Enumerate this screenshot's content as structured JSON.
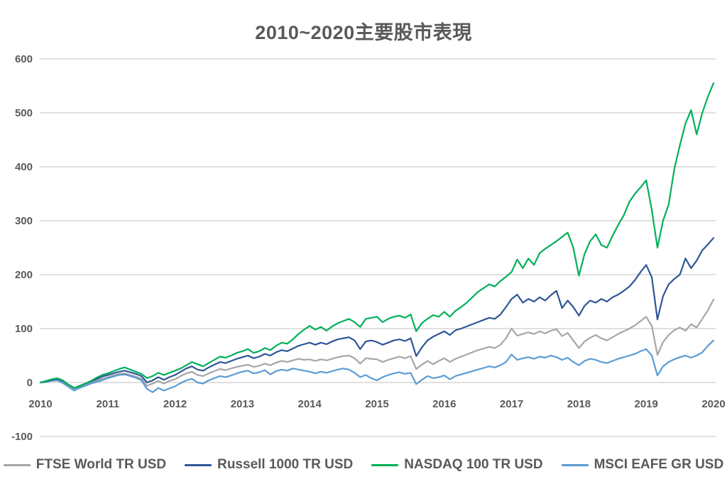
{
  "title": "2010~2020主要股市表現",
  "colors": {
    "title_text": "#595959",
    "axis_text": "#595959",
    "gridline": "#d6d6d6",
    "background": "#ffffff",
    "ftse_world": "#a6a6a6",
    "russell_1000": "#2e5696",
    "nasdaq_100": "#00b05a",
    "msci_eafe": "#5b9bd5"
  },
  "chart_data": {
    "type": "line",
    "title": "2010~2020主要股市表現",
    "xlabel": "",
    "ylabel": "",
    "grid": true,
    "legend_position": "bottom",
    "x_axis": {
      "tick_labels": [
        "2010",
        "2011",
        "2012",
        "2013",
        "2014",
        "2015",
        "2016",
        "2017",
        "2018",
        "2019",
        "2020"
      ],
      "start_year": 2010,
      "end_year": 2020,
      "points_per_series": 121,
      "interval_months": 1
    },
    "y_axis": {
      "min": -100,
      "max": 600,
      "tick_step": 100,
      "tick_labels": [
        "600",
        "500",
        "400",
        "300",
        "200",
        "100",
        "0",
        "-100"
      ]
    },
    "series": [
      {
        "name": "FTSE World TR USD",
        "color": "#a6a6a6",
        "values": [
          0,
          2,
          4,
          5,
          1,
          -6,
          -12,
          -8,
          -4,
          0,
          3,
          7,
          10,
          13,
          16,
          17,
          14,
          11,
          7,
          -6,
          -2,
          3,
          -2,
          3,
          6,
          12,
          17,
          20,
          14,
          12,
          17,
          21,
          25,
          23,
          26,
          29,
          31,
          33,
          29,
          31,
          35,
          32,
          37,
          40,
          38,
          41,
          44,
          42,
          43,
          40,
          43,
          41,
          44,
          47,
          49,
          50,
          45,
          35,
          45,
          44,
          43,
          38,
          42,
          45,
          48,
          45,
          49,
          25,
          33,
          40,
          34,
          40,
          45,
          38,
          44,
          48,
          52,
          56,
          60,
          63,
          66,
          64,
          70,
          82,
          100,
          87,
          90,
          93,
          90,
          95,
          91,
          96,
          99,
          86,
          92,
          78,
          64,
          76,
          83,
          88,
          82,
          78,
          84,
          90,
          95,
          100,
          106,
          114,
          122,
          105,
          51,
          75,
          88,
          97,
          102,
          96,
          108,
          102,
          118,
          134,
          154
        ]
      },
      {
        "name": "Russell 1000 TR USD",
        "color": "#2e5696",
        "values": [
          0,
          2,
          5,
          7,
          3,
          -4,
          -10,
          -6,
          -2,
          2,
          6,
          11,
          14,
          17,
          20,
          22,
          19,
          16,
          12,
          0,
          4,
          10,
          5,
          10,
          14,
          20,
          26,
          30,
          24,
          22,
          28,
          33,
          38,
          36,
          40,
          44,
          47,
          50,
          45,
          48,
          53,
          50,
          56,
          60,
          58,
          63,
          68,
          71,
          74,
          70,
          74,
          71,
          76,
          80,
          82,
          84,
          78,
          62,
          76,
          78,
          75,
          70,
          74,
          78,
          80,
          77,
          82,
          49,
          65,
          78,
          85,
          90,
          95,
          88,
          97,
          100,
          104,
          108,
          112,
          116,
          120,
          118,
          126,
          140,
          155,
          163,
          148,
          155,
          150,
          158,
          152,
          162,
          170,
          138,
          152,
          140,
          124,
          142,
          152,
          148,
          155,
          150,
          158,
          163,
          170,
          178,
          190,
          205,
          218,
          195,
          117,
          160,
          182,
          192,
          200,
          230,
          212,
          226,
          245,
          256,
          268
        ]
      },
      {
        "name": "NASDAQ 100 TR USD",
        "color": "#00b05a",
        "values": [
          0,
          3,
          6,
          8,
          4,
          -4,
          -10,
          -7,
          -2,
          3,
          9,
          14,
          17,
          21,
          25,
          28,
          24,
          20,
          16,
          8,
          12,
          18,
          14,
          18,
          22,
          26,
          32,
          38,
          34,
          30,
          36,
          42,
          48,
          46,
          50,
          55,
          58,
          62,
          55,
          58,
          64,
          60,
          68,
          74,
          72,
          80,
          90,
          98,
          105,
          98,
          103,
          96,
          104,
          110,
          114,
          118,
          112,
          103,
          118,
          120,
          122,
          112,
          118,
          122,
          124,
          120,
          126,
          95,
          110,
          118,
          125,
          122,
          131,
          122,
          133,
          140,
          148,
          158,
          168,
          175,
          182,
          178,
          188,
          196,
          205,
          228,
          212,
          230,
          218,
          240,
          248,
          255,
          262,
          270,
          278,
          250,
          198,
          238,
          262,
          275,
          255,
          250,
          272,
          292,
          310,
          335,
          350,
          362,
          375,
          320,
          250,
          300,
          330,
          395,
          440,
          480,
          505,
          460,
          500,
          530,
          555
        ]
      },
      {
        "name": "MSCI EAFE GR USD",
        "color": "#5b9bd5",
        "values": [
          0,
          1,
          3,
          4,
          -1,
          -8,
          -15,
          -10,
          -6,
          -2,
          1,
          4,
          8,
          11,
          14,
          15,
          12,
          9,
          4,
          -12,
          -18,
          -10,
          -15,
          -11,
          -7,
          -1,
          4,
          7,
          0,
          -2,
          4,
          8,
          12,
          10,
          13,
          17,
          20,
          22,
          17,
          19,
          23,
          15,
          21,
          24,
          22,
          26,
          24,
          22,
          20,
          17,
          20,
          18,
          21,
          24,
          26,
          24,
          18,
          10,
          14,
          8,
          4,
          10,
          14,
          17,
          19,
          16,
          18,
          -3,
          5,
          12,
          8,
          10,
          13,
          6,
          12,
          15,
          18,
          21,
          24,
          27,
          30,
          28,
          32,
          38,
          52,
          42,
          45,
          47,
          44,
          48,
          46,
          50,
          47,
          42,
          46,
          38,
          32,
          40,
          44,
          42,
          38,
          36,
          40,
          44,
          47,
          50,
          53,
          58,
          62,
          50,
          13,
          30,
          38,
          43,
          47,
          50,
          46,
          50,
          56,
          68,
          78
        ]
      }
    ]
  },
  "legend": {
    "items": [
      {
        "label": "FTSE World TR USD",
        "color": "#a6a6a6"
      },
      {
        "label": "Russell 1000 TR USD",
        "color": "#2e5696"
      },
      {
        "label": "NASDAQ 100 TR USD",
        "color": "#00b05a"
      },
      {
        "label": "MSCI EAFE GR USD",
        "color": "#5b9bd5"
      }
    ]
  }
}
